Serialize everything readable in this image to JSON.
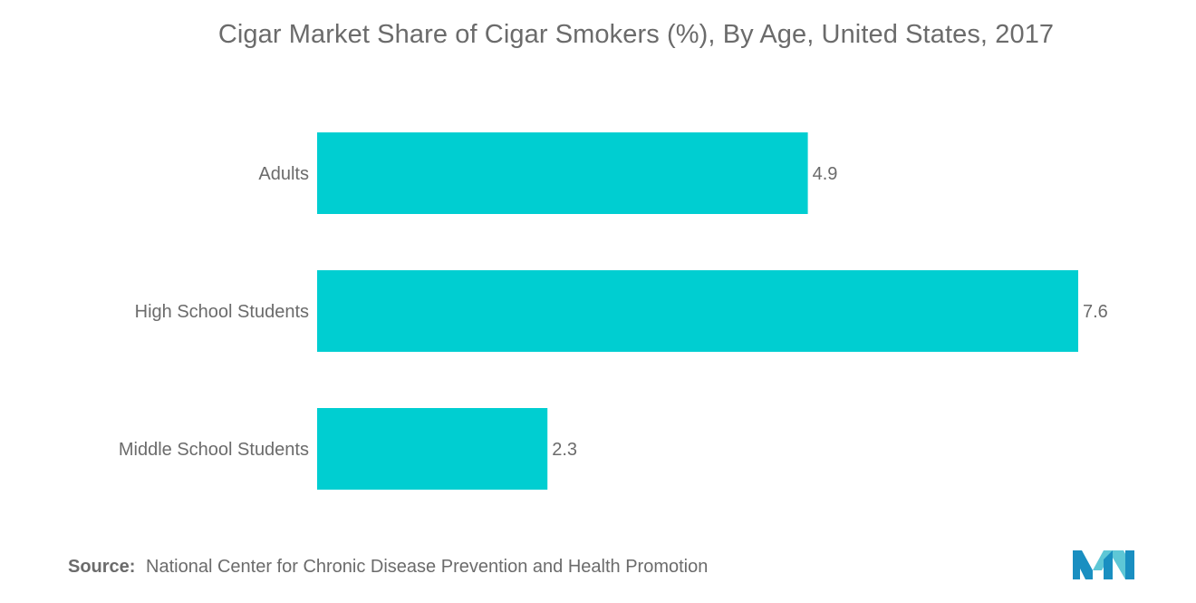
{
  "chart_data": {
    "type": "bar",
    "orientation": "horizontal",
    "title": "Cigar Market Share of Cigar Smokers (%), By Age, United States, 2017",
    "categories": [
      "Adults",
      "High School Students",
      "Middle School Students"
    ],
    "values": [
      4.9,
      7.6,
      2.3
    ],
    "data_labels": [
      "4.9",
      "7.6",
      "2.3"
    ],
    "xlabel": "",
    "ylabel": "",
    "xlim": [
      0,
      7.6
    ],
    "grid": false,
    "legend": "none",
    "bar_color": "#00ced1"
  },
  "source": {
    "label": "Source:",
    "text": "National Center for Chronic Disease Prevention and Health Promotion"
  },
  "logo": {
    "icon": "mordor-intelligence-logo-icon",
    "colors": [
      "#1a8fc1",
      "#5ec7d6"
    ]
  },
  "colors": {
    "text": "#6b6b6b",
    "axis": "#cccccc"
  }
}
